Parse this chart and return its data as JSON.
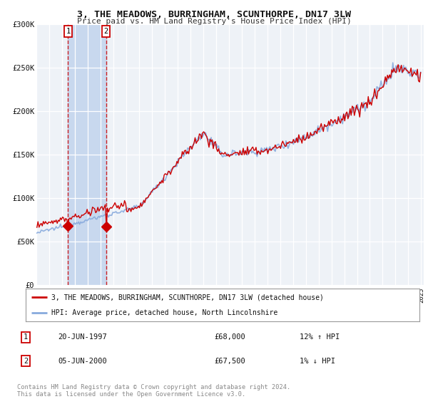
{
  "title": "3, THE MEADOWS, BURRINGHAM, SCUNTHORPE, DN17 3LW",
  "subtitle": "Price paid vs. HM Land Registry's House Price Index (HPI)",
  "ylabel_ticks": [
    "£0",
    "£50K",
    "£100K",
    "£150K",
    "£200K",
    "£250K",
    "£300K"
  ],
  "ytick_values": [
    0,
    50000,
    100000,
    150000,
    200000,
    250000,
    300000
  ],
  "ylim": [
    0,
    300000
  ],
  "background_color": "#ffffff",
  "plot_bg_color": "#eef2f7",
  "grid_color": "#ffffff",
  "legend_label_red": "3, THE MEADOWS, BURRINGHAM, SCUNTHORPE, DN17 3LW (detached house)",
  "legend_label_blue": "HPI: Average price, detached house, North Lincolnshire",
  "footer": "Contains HM Land Registry data © Crown copyright and database right 2024.\nThis data is licensed under the Open Government Licence v3.0.",
  "sale1_date": "20-JUN-1997",
  "sale1_price": "£68,000",
  "sale1_hpi": "12% ↑ HPI",
  "sale1_x": 1997.47,
  "sale1_y": 68000,
  "sale2_date": "05-JUN-2000",
  "sale2_price": "£67,500",
  "sale2_hpi": "1% ↓ HPI",
  "sale2_x": 2000.43,
  "sale2_y": 67500,
  "red_color": "#cc0000",
  "blue_color": "#88aadd",
  "shade_color": "#c8d8ee",
  "x_min": 1995.0,
  "x_max": 2025.2
}
